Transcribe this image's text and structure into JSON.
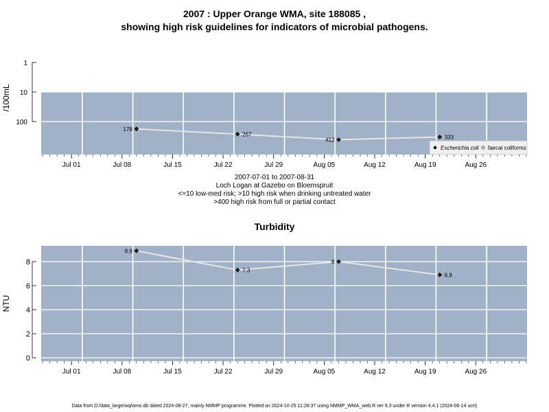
{
  "title": {
    "line1": "2007 : Upper Orange WMA, site 188085 ,",
    "line2": "showing high risk guidelines for indicators of microbial pathogens."
  },
  "subtitle_lines": [
    "2007-07-01 to 2007-08-31",
    "Loch Logan at Gazebo on Bloemspruit",
    "<=10 low-med risk; >10 high risk when drinking untreated water",
    ">400 high risk from full or partial contact"
  ],
  "footer": "Data from D:/data_large/wq/wms.db dated 2024-08-27, mainly NMMP programme. Plotted on 2024-10-25 11:26:37 using NMMP_WMA_web.R ver 9.3 under R version 4.4.1 (2024-06-14 ucrt)",
  "chart_data": [
    {
      "type": "scatter",
      "title": "",
      "ylabel": "/100mL",
      "yscale": "log",
      "x_ticks": [
        "Jul 01",
        "Jul 08",
        "Jul 15",
        "Jul 22",
        "Jul 29",
        "Aug 05",
        "Aug 12",
        "Aug 19",
        "Aug 26"
      ],
      "y_ticks": [
        1,
        10,
        100
      ],
      "y_tick_labels": [
        "1",
        "10",
        "100"
      ],
      "risk_bands": [
        {
          "from": 0,
          "to": 10,
          "meaning": "low-med risk",
          "color": "#a1b1c8"
        },
        {
          "from": 10,
          "to": 400,
          "meaning": "high risk when drinking untreated water",
          "color": "#c3cbbe"
        },
        {
          "from": 400,
          "to": 1000,
          "meaning": "high risk from full or partial contact",
          "color": "#faf3c3"
        }
      ],
      "series": [
        {
          "name": "Escherichia coli",
          "marker": "filled-diamond",
          "points": [
            {
              "x": "2007-07-10",
              "y": 178,
              "label": "178"
            },
            {
              "x": "2007-07-24",
              "y": 267,
              "label": "267"
            },
            {
              "x": "2007-08-07",
              "y": 412,
              "label": "412"
            },
            {
              "x": "2007-08-21",
              "y": 333,
              "label": "333"
            }
          ]
        },
        {
          "name": "faecal coliforms",
          "marker": "open-diamond",
          "points": []
        }
      ],
      "legend": {
        "position": "bottom-right",
        "entries": [
          "Escherichia coli",
          "faecal coliforms"
        ]
      },
      "grid": true
    },
    {
      "type": "line",
      "title": "Turbidity",
      "ylabel": "NTU",
      "x_ticks": [
        "Jul 01",
        "Jul 08",
        "Jul 15",
        "Jul 22",
        "Jul 29",
        "Aug 05",
        "Aug 12",
        "Aug 19",
        "Aug 26"
      ],
      "y_ticks": [
        0,
        2,
        4,
        6,
        8
      ],
      "series": [
        {
          "name": "",
          "points": [
            {
              "x": "2007-07-10",
              "y": 8.9,
              "label": "8.9"
            },
            {
              "x": "2007-07-24",
              "y": 7.3,
              "label": "7.3"
            },
            {
              "x": "2007-08-07",
              "y": 8.0,
              "label": "8"
            },
            {
              "x": "2007-08-21",
              "y": 6.9,
              "label": "6.9"
            }
          ]
        }
      ],
      "grid": true
    }
  ],
  "colors": {
    "panel_fill": "#a1b1c8",
    "high_risk_drinking": "#c3cbbe",
    "high_risk_contact": "#faf3c3",
    "line": "#e6e6e6",
    "marker": "#222222"
  }
}
